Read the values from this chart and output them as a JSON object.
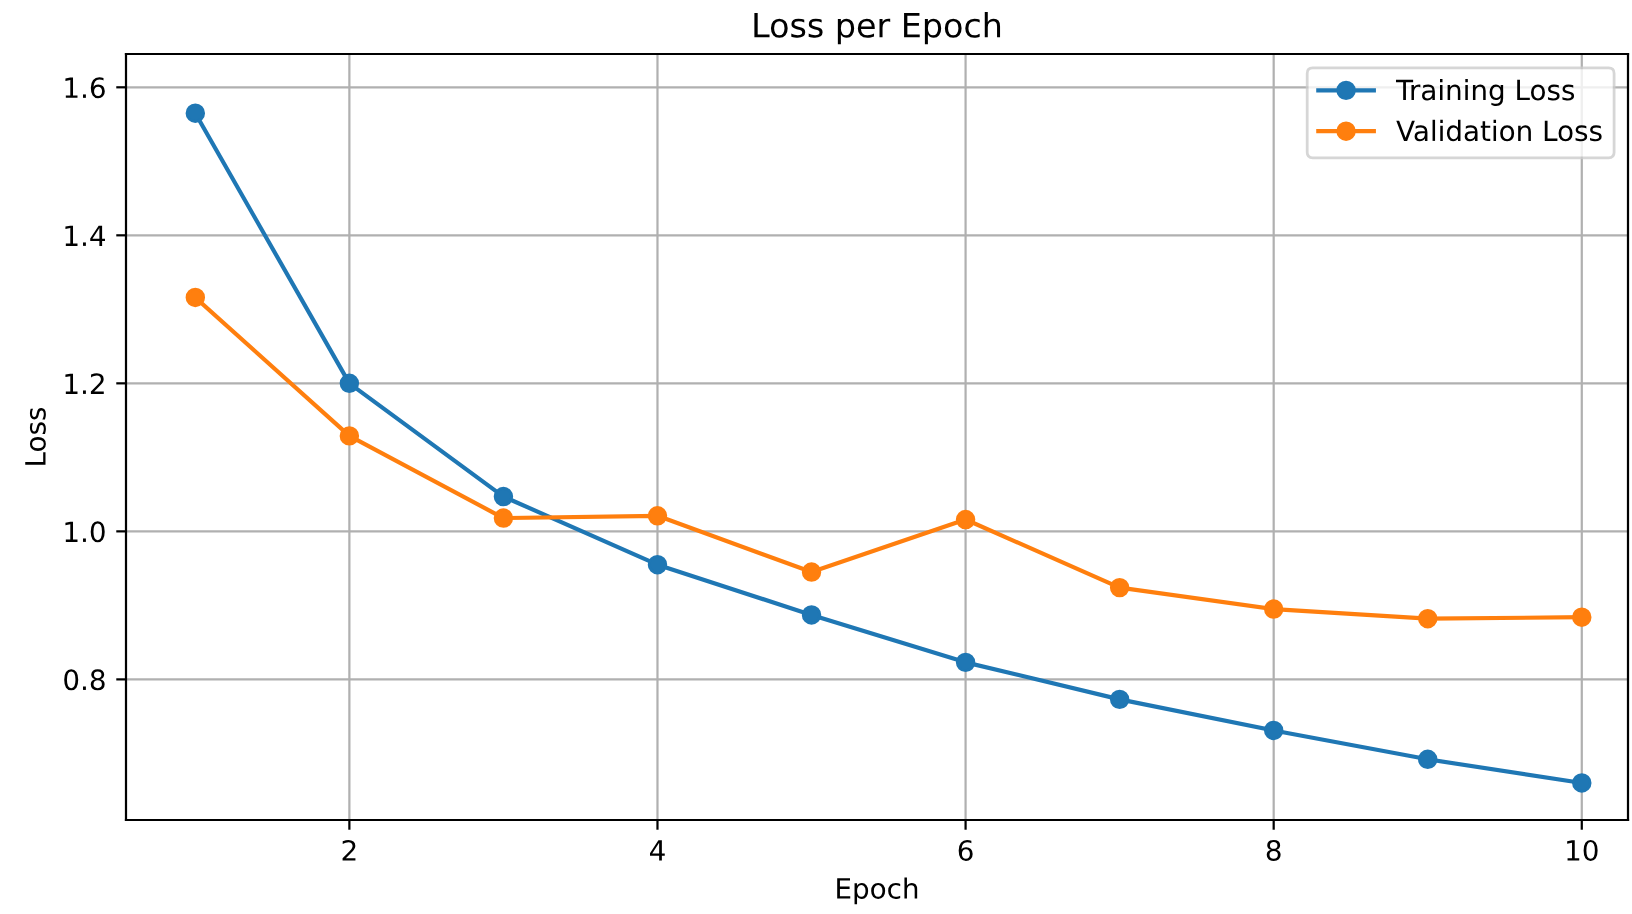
{
  "chart_data": {
    "type": "line",
    "title": "Loss per Epoch",
    "xlabel": "Epoch",
    "ylabel": "Loss",
    "x": [
      1,
      2,
      3,
      4,
      5,
      6,
      7,
      8,
      9,
      10
    ],
    "series": [
      {
        "name": "Training Loss",
        "color": "#1f77b4",
        "values": [
          1.565,
          1.2,
          1.047,
          0.955,
          0.887,
          0.823,
          0.773,
          0.731,
          0.692,
          0.66
        ]
      },
      {
        "name": "Validation Loss",
        "color": "#ff7f0e",
        "values": [
          1.316,
          1.129,
          1.018,
          1.021,
          0.945,
          1.016,
          0.924,
          0.895,
          0.882,
          0.884
        ]
      }
    ],
    "xlim": [
      0.55,
      10.3
    ],
    "ylim": [
      0.61,
      1.645
    ],
    "xticks": [
      2,
      4,
      6,
      8,
      10
    ],
    "yticks": [
      0.8,
      {
        "value": 1.0,
        "label": "1.0"
      },
      1.2,
      1.4,
      1.6
    ],
    "grid": true,
    "legend": "top right",
    "marker": "circle",
    "line_style": "solid"
  }
}
